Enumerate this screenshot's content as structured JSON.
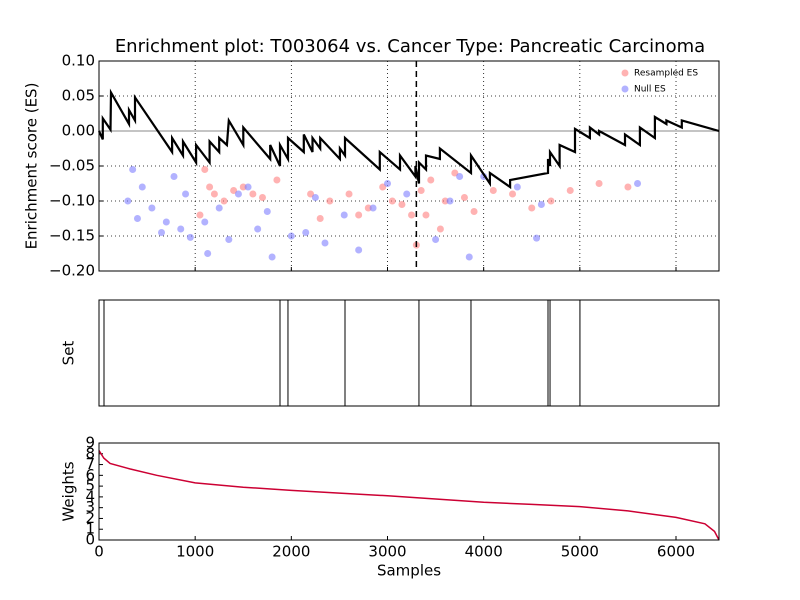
{
  "chart_data": [
    {
      "type": "enrichment",
      "title": "Enrichment plot: T003064 vs. Cancer Type: Pancreatic Carcinoma",
      "ylabel": "Enrichment score (ES)",
      "xlim": [
        0,
        6447
      ],
      "ylim": [
        -0.2,
        0.1
      ],
      "xticks": [
        1000,
        2000,
        3000,
        4000,
        5000,
        6000
      ],
      "yticks": [
        {
          "value": -0.2,
          "label": "−0.20"
        },
        {
          "value": -0.15,
          "label": "−0.15"
        },
        {
          "value": -0.1,
          "label": "−0.10"
        },
        {
          "value": -0.05,
          "label": "−0.05"
        },
        {
          "value": 0,
          "label": "0.00"
        },
        {
          "value": 0.05,
          "label": "0.05"
        },
        {
          "value": 0.1,
          "label": "0.10"
        }
      ],
      "grid": true,
      "reference_y": 0,
      "marker_x": 3300,
      "legend": "upper right",
      "line": {
        "color": "#000000",
        "x": [
          0,
          40,
          40,
          120,
          125,
          312,
          312,
          374,
          374,
          760,
          760,
          873,
          873,
          1010,
          1010,
          1150,
          1150,
          1250,
          1250,
          1330,
          1350,
          1500,
          1500,
          1780,
          1780,
          1882,
          1882,
          1965,
          1965,
          2130,
          2130,
          2220,
          2220,
          2300,
          2300,
          2505,
          2505,
          2558,
          2558,
          2920,
          2920,
          3130,
          3130,
          3290,
          3290,
          3327,
          3327,
          3400,
          3400,
          3545,
          3545,
          3868,
          3868,
          4065,
          4065,
          4275,
          4275,
          4669,
          4669,
          4690,
          4690,
          4790,
          4790,
          4950,
          4950,
          5105,
          5105,
          5200,
          5200,
          5470,
          5470,
          5625,
          5625,
          5780,
          5780,
          5900,
          5900,
          6060,
          6060,
          6447
        ],
        "y": [
          0,
          -0.012,
          0.018,
          0.002,
          0.055,
          0.01,
          0.03,
          0.015,
          0.048,
          -0.03,
          -0.01,
          -0.035,
          -0.015,
          -0.045,
          -0.02,
          -0.045,
          -0.015,
          -0.03,
          -0.01,
          -0.02,
          0.015,
          -0.02,
          0.005,
          -0.04,
          -0.02,
          -0.05,
          -0.02,
          -0.04,
          -0.01,
          -0.03,
          -0.005,
          -0.03,
          -0.01,
          -0.025,
          -0.01,
          -0.04,
          -0.025,
          -0.035,
          -0.01,
          -0.055,
          -0.03,
          -0.055,
          -0.035,
          -0.065,
          -0.05,
          -0.075,
          -0.045,
          -0.055,
          -0.035,
          -0.04,
          -0.025,
          -0.06,
          -0.035,
          -0.075,
          -0.06,
          -0.08,
          -0.07,
          -0.06,
          -0.04,
          -0.05,
          -0.03,
          -0.05,
          -0.02,
          -0.03,
          0.003,
          -0.01,
          0.005,
          -0.005,
          0,
          -0.02,
          -0.005,
          -0.02,
          0.005,
          -0.01,
          0.02,
          0.01,
          0.015,
          0.005,
          0.015,
          0
        ]
      },
      "series": [
        {
          "name": "Resampled ES",
          "color": "#ff7f7f",
          "x": [
            1100,
            1150,
            1200,
            1300,
            1400,
            1500,
            1600,
            1700,
            1850,
            2200,
            2300,
            2400,
            2600,
            2800,
            2950,
            3050,
            3150,
            3250,
            3300,
            3350,
            3400,
            3450,
            3600,
            3700,
            3800,
            3900,
            4100,
            4300,
            4500,
            4700,
            4900,
            5200,
            5500,
            1050,
            2700,
            3550
          ],
          "y": [
            -0.055,
            -0.08,
            -0.09,
            -0.1,
            -0.085,
            -0.08,
            -0.09,
            -0.095,
            -0.07,
            -0.09,
            -0.125,
            -0.1,
            -0.09,
            -0.11,
            -0.08,
            -0.1,
            -0.105,
            -0.12,
            -0.163,
            -0.085,
            -0.12,
            -0.07,
            -0.1,
            -0.06,
            -0.095,
            -0.115,
            -0.085,
            -0.09,
            -0.11,
            -0.1,
            -0.085,
            -0.075,
            -0.08,
            -0.12,
            -0.12,
            -0.14
          ]
        },
        {
          "name": "Null ES",
          "color": "#7f7fff",
          "x": [
            300,
            350,
            400,
            450,
            550,
            650,
            700,
            780,
            850,
            900,
            950,
            1100,
            1130,
            1250,
            1350,
            1450,
            1550,
            1650,
            1750,
            1800,
            2000,
            2150,
            2250,
            2350,
            2550,
            2700,
            2850,
            3000,
            3200,
            3500,
            3650,
            3750,
            3850,
            4000,
            4350,
            4550,
            4600,
            5600
          ],
          "y": [
            -0.1,
            -0.055,
            -0.125,
            -0.08,
            -0.11,
            -0.145,
            -0.13,
            -0.065,
            -0.14,
            -0.09,
            -0.152,
            -0.13,
            -0.175,
            -0.11,
            -0.155,
            -0.09,
            -0.08,
            -0.14,
            -0.115,
            -0.18,
            -0.15,
            -0.145,
            -0.095,
            -0.16,
            -0.12,
            -0.17,
            -0.11,
            -0.075,
            -0.09,
            -0.155,
            -0.1,
            -0.065,
            -0.18,
            -0.065,
            -0.08,
            -0.153,
            -0.105,
            -0.075
          ]
        }
      ]
    },
    {
      "type": "rug",
      "ylabel": "Set",
      "xlim": [
        0,
        6447
      ],
      "color": "#000000",
      "x": [
        52,
        1882,
        1965,
        2558,
        3327,
        3868,
        4669,
        4690,
        5001
      ]
    },
    {
      "type": "line",
      "ylabel": "Weights",
      "xlabel": "Samples",
      "xlim": [
        0,
        6447
      ],
      "ylim": [
        0,
        9
      ],
      "xticks": [
        0,
        1000,
        2000,
        3000,
        4000,
        5000,
        6000
      ],
      "yticks": [
        0,
        1,
        2,
        3,
        4,
        5,
        6,
        7,
        8,
        9
      ],
      "color": "#cc0033",
      "x": [
        0,
        50,
        115,
        320,
        600,
        1000,
        1500,
        2000,
        2500,
        3000,
        3500,
        4000,
        4500,
        5000,
        5500,
        6000,
        6300,
        6400,
        6447
      ],
      "y": [
        8.3,
        7.6,
        7.1,
        6.6,
        6.0,
        5.3,
        4.9,
        4.6,
        4.35,
        4.1,
        3.8,
        3.5,
        3.3,
        3.1,
        2.7,
        2.1,
        1.5,
        0.8,
        0
      ]
    }
  ]
}
